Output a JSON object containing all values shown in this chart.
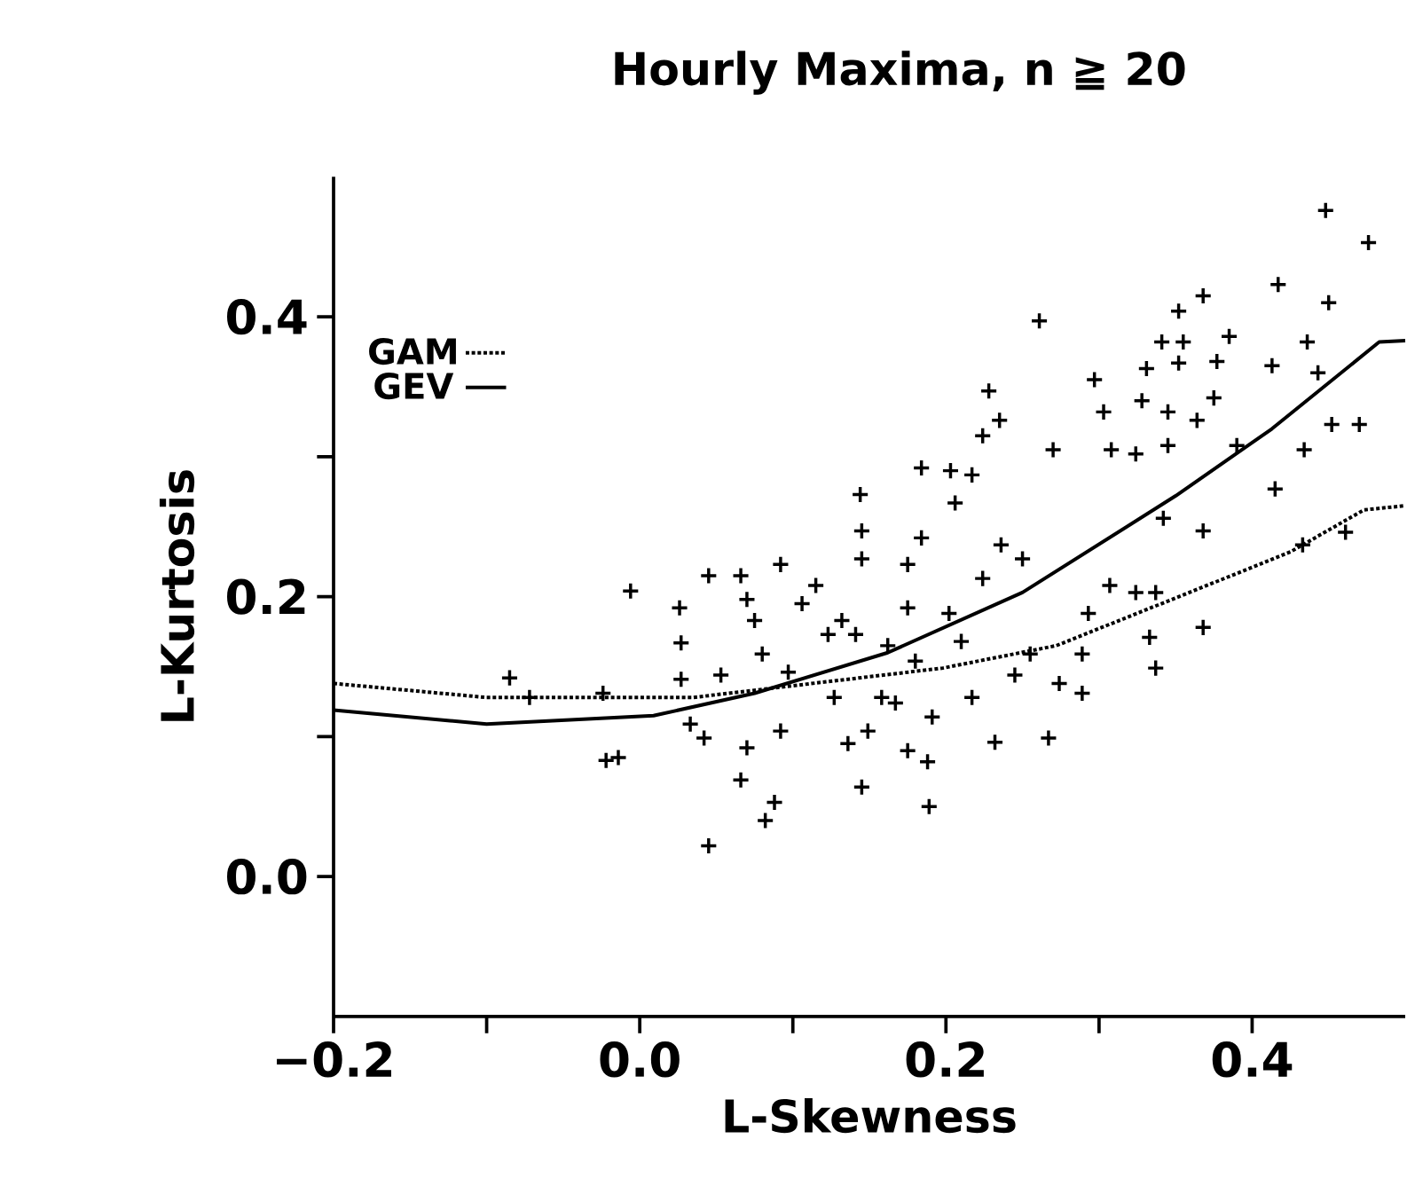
{
  "chart_data": {
    "type": "scatter",
    "title": "Hourly Maxima, n ≧ 20",
    "xlabel": "L-Skewness",
    "ylabel": "L-Kurtosis",
    "xlim": [
      -0.2,
      0.5
    ],
    "ylim": [
      -0.1,
      0.5
    ],
    "xticks": [
      {
        "value": -0.2,
        "label": "−0.2"
      },
      {
        "value": -0.1,
        "label": null
      },
      {
        "value": 0,
        "label": "0.0"
      },
      {
        "value": 0.1,
        "label": null
      },
      {
        "value": 0.2,
        "label": "0.2"
      },
      {
        "value": 0.3,
        "label": null
      },
      {
        "value": 0.4,
        "label": "0.4"
      }
    ],
    "yticks": [
      {
        "value": 0,
        "label": "0.0"
      },
      {
        "value": 0.1,
        "label": null
      },
      {
        "value": 0.2,
        "label": "0.2"
      },
      {
        "value": 0.3,
        "label": null
      },
      {
        "value": 0.4,
        "label": "0.4"
      }
    ],
    "legend": "top left",
    "series": [
      {
        "color": "#000000",
        "marker": "cross",
        "x": [
          -0.006,
          -0.085,
          -0.072,
          -0.024,
          -0.022,
          -0.014,
          0.026,
          0.027,
          0.027,
          0.045,
          0.045,
          0.033,
          0.042,
          0.053,
          0.066,
          0.07,
          0.075,
          0.092,
          0.115,
          0.066,
          0.082,
          0.088,
          0.07,
          0.092,
          0.106,
          0.08,
          0.097,
          0.123,
          0.132,
          0.141,
          0.145,
          0.145,
          0.127,
          0.136,
          0.145,
          0.149,
          0.162,
          0.158,
          0.167,
          0.175,
          0.189,
          0.188,
          0.191,
          0.18,
          0.175,
          0.175,
          0.184,
          0.206,
          0.202,
          0.21,
          0.217,
          0.224,
          0.232,
          0.245,
          0.255,
          0.267,
          0.274,
          0.289,
          0.289,
          0.293,
          0.307,
          0.324,
          0.337,
          0.333,
          0.337,
          0.368,
          0.433,
          0.236,
          0.25,
          0.342,
          0.368,
          0.261,
          0.352,
          0.368,
          0.417,
          0.448,
          0.476,
          0.45,
          0.341,
          0.355,
          0.385,
          0.352,
          0.331,
          0.377,
          0.413,
          0.436,
          0.443,
          0.297,
          0.228,
          0.328,
          0.375,
          0.303,
          0.345,
          0.364,
          0.224,
          0.235,
          0.27,
          0.308,
          0.324,
          0.345,
          0.39,
          0.434,
          0.452,
          0.415,
          0.144,
          0.184,
          0.203,
          0.217,
          0.47,
          0.461
        ],
        "values": [
          0.204,
          0.142,
          0.128,
          0.131,
          0.083,
          0.085,
          0.192,
          0.167,
          0.141,
          0.215,
          0.022,
          0.109,
          0.099,
          0.144,
          0.215,
          0.198,
          0.183,
          0.223,
          0.208,
          0.069,
          0.04,
          0.053,
          0.092,
          0.104,
          0.195,
          0.159,
          0.146,
          0.173,
          0.183,
          0.173,
          0.247,
          0.227,
          0.128,
          0.095,
          0.064,
          0.104,
          0.165,
          0.128,
          0.124,
          0.09,
          0.05,
          0.082,
          0.114,
          0.154,
          0.192,
          0.223,
          0.242,
          0.267,
          0.188,
          0.168,
          0.128,
          0.213,
          0.096,
          0.144,
          0.159,
          0.099,
          0.138,
          0.131,
          0.159,
          0.188,
          0.208,
          0.203,
          0.203,
          0.171,
          0.149,
          0.178,
          0.237,
          0.237,
          0.227,
          0.256,
          0.247,
          0.397,
          0.404,
          0.415,
          0.423,
          0.476,
          0.453,
          0.41,
          0.382,
          0.382,
          0.386,
          0.367,
          0.363,
          0.368,
          0.365,
          0.382,
          0.36,
          0.355,
          0.347,
          0.34,
          0.342,
          0.332,
          0.332,
          0.326,
          0.315,
          0.326,
          0.305,
          0.305,
          0.302,
          0.308,
          0.308,
          0.305,
          0.323,
          0.277,
          0.273,
          0.292,
          0.29,
          0.287,
          0.323,
          0.246
        ]
      },
      {
        "type": "line",
        "name": "GAM",
        "color": "#000000",
        "line_style": "dotted",
        "x": [
          -0.2,
          -0.1,
          0.035,
          0.198,
          0.272,
          0.359,
          0.425,
          0.473,
          0.5
        ],
        "values": [
          0.138,
          0.128,
          0.128,
          0.149,
          0.165,
          0.203,
          0.232,
          0.262,
          0.265
        ]
      },
      {
        "type": "line",
        "name": "GEV",
        "color": "#000000",
        "line_style": "solid",
        "x": [
          -0.2,
          -0.1,
          0.009,
          0.075,
          0.162,
          0.25,
          0.35,
          0.413,
          0.483,
          0.5
        ],
        "values": [
          0.119,
          0.109,
          0.115,
          0.131,
          0.16,
          0.203,
          0.272,
          0.32,
          0.382,
          0.383
        ]
      }
    ]
  }
}
